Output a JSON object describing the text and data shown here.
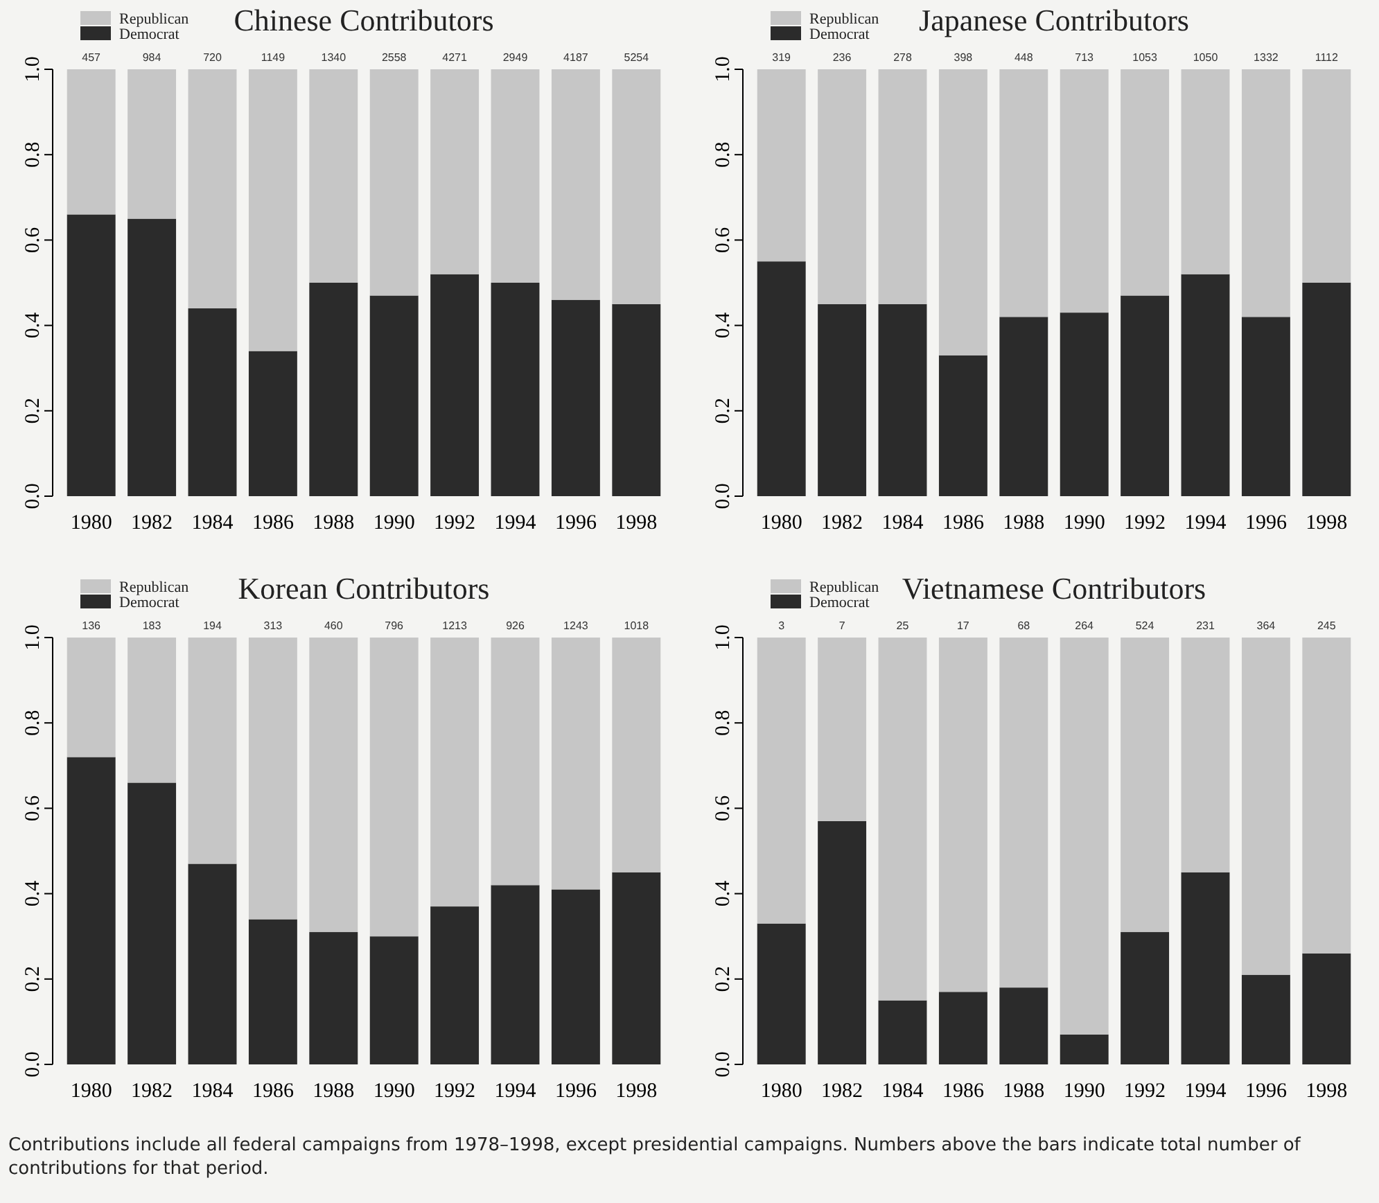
{
  "chart_data": [
    {
      "type": "bar",
      "title": "Chinese Contributors",
      "stacked": true,
      "legend": "top left",
      "ylim": [
        0,
        1.0
      ],
      "yticks": [
        {
          "value": 0,
          "label": "0.0"
        },
        {
          "value": 0.2,
          "label": "0.2"
        },
        {
          "value": 0.4,
          "label": "0.4"
        },
        {
          "value": 0.6,
          "label": "0.6"
        },
        {
          "value": 0.8,
          "label": "0.8"
        },
        {
          "value": 1,
          "label": "1.0"
        }
      ],
      "categories": [
        "1980",
        "1982",
        "1984",
        "1986",
        "1988",
        "1990",
        "1992",
        "1994",
        "1996",
        "1998"
      ],
      "series": [
        {
          "name": "Democrat",
          "color": "#2b2b2b",
          "values": [
            0.66,
            0.65,
            0.44,
            0.34,
            0.5,
            0.47,
            0.52,
            0.5,
            0.46,
            0.45
          ]
        },
        {
          "name": "Republican",
          "color": "#c6c6c6",
          "values": [
            0.34,
            0.35,
            0.56,
            0.66,
            0.5,
            0.53,
            0.48,
            0.5,
            0.54,
            0.55
          ]
        }
      ],
      "annotations": [
        {
          "text": "457",
          "x": "1980",
          "y": 1
        },
        {
          "text": "984",
          "x": "1982",
          "y": 1
        },
        {
          "text": "720",
          "x": "1984",
          "y": 1
        },
        {
          "text": "1149",
          "x": "1986",
          "y": 1
        },
        {
          "text": "1340",
          "x": "1988",
          "y": 1
        },
        {
          "text": "2558",
          "x": "1990",
          "y": 1
        },
        {
          "text": "4271",
          "x": "1992",
          "y": 1
        },
        {
          "text": "2949",
          "x": "1994",
          "y": 1
        },
        {
          "text": "4187",
          "x": "1996",
          "y": 1
        },
        {
          "text": "5254",
          "x": "1998",
          "y": 1
        }
      ]
    },
    {
      "type": "bar",
      "title": "Japanese Contributors",
      "stacked": true,
      "legend": "top left",
      "ylim": [
        0,
        1.0
      ],
      "yticks": [
        {
          "value": 0,
          "label": "0.0"
        },
        {
          "value": 0.2,
          "label": "0.2"
        },
        {
          "value": 0.4,
          "label": "0.4"
        },
        {
          "value": 0.6,
          "label": "0.6"
        },
        {
          "value": 0.8,
          "label": "0.8"
        },
        {
          "value": 1,
          "label": "1.0"
        }
      ],
      "categories": [
        "1980",
        "1982",
        "1984",
        "1986",
        "1988",
        "1990",
        "1992",
        "1994",
        "1996",
        "1998"
      ],
      "series": [
        {
          "name": "Democrat",
          "color": "#2b2b2b",
          "values": [
            0.55,
            0.45,
            0.45,
            0.33,
            0.42,
            0.43,
            0.47,
            0.52,
            0.42,
            0.5
          ]
        },
        {
          "name": "Republican",
          "color": "#c6c6c6",
          "values": [
            0.45,
            0.55,
            0.55,
            0.67,
            0.58,
            0.57,
            0.53,
            0.48,
            0.58,
            0.5
          ]
        }
      ],
      "annotations": [
        {
          "text": "319",
          "x": "1980",
          "y": 1
        },
        {
          "text": "236",
          "x": "1982",
          "y": 1
        },
        {
          "text": "278",
          "x": "1984",
          "y": 1
        },
        {
          "text": "398",
          "x": "1986",
          "y": 1
        },
        {
          "text": "448",
          "x": "1988",
          "y": 1
        },
        {
          "text": "713",
          "x": "1990",
          "y": 1
        },
        {
          "text": "1053",
          "x": "1992",
          "y": 1
        },
        {
          "text": "1050",
          "x": "1994",
          "y": 1
        },
        {
          "text": "1332",
          "x": "1996",
          "y": 1
        },
        {
          "text": "1112",
          "x": "1998",
          "y": 1
        }
      ]
    },
    {
      "type": "bar",
      "title": "Korean Contributors",
      "stacked": true,
      "legend": "top left",
      "ylim": [
        0,
        1.0
      ],
      "yticks": [
        {
          "value": 0,
          "label": "0.0"
        },
        {
          "value": 0.2,
          "label": "0.2"
        },
        {
          "value": 0.4,
          "label": "0.4"
        },
        {
          "value": 0.6,
          "label": "0.6"
        },
        {
          "value": 0.8,
          "label": "0.8"
        },
        {
          "value": 1,
          "label": "1.0"
        }
      ],
      "categories": [
        "1980",
        "1982",
        "1984",
        "1986",
        "1988",
        "1990",
        "1992",
        "1994",
        "1996",
        "1998"
      ],
      "series": [
        {
          "name": "Democrat",
          "color": "#2b2b2b",
          "values": [
            0.72,
            0.66,
            0.47,
            0.34,
            0.31,
            0.3,
            0.37,
            0.42,
            0.41,
            0.45
          ]
        },
        {
          "name": "Republican",
          "color": "#c6c6c6",
          "values": [
            0.28,
            0.34,
            0.53,
            0.66,
            0.69,
            0.7,
            0.63,
            0.58,
            0.59,
            0.55
          ]
        }
      ],
      "annotations": [
        {
          "text": "136",
          "x": "1980",
          "y": 1
        },
        {
          "text": "183",
          "x": "1982",
          "y": 1
        },
        {
          "text": "194",
          "x": "1984",
          "y": 1
        },
        {
          "text": "313",
          "x": "1986",
          "y": 1
        },
        {
          "text": "460",
          "x": "1988",
          "y": 1
        },
        {
          "text": "796",
          "x": "1990",
          "y": 1
        },
        {
          "text": "1213",
          "x": "1992",
          "y": 1
        },
        {
          "text": "926",
          "x": "1994",
          "y": 1
        },
        {
          "text": "1243",
          "x": "1996",
          "y": 1
        },
        {
          "text": "1018",
          "x": "1998",
          "y": 1
        }
      ]
    },
    {
      "type": "bar",
      "title": "Vietnamese Contributors",
      "stacked": true,
      "legend": "top left",
      "ylim": [
        0,
        1.0
      ],
      "yticks": [
        {
          "value": 0,
          "label": "0.0"
        },
        {
          "value": 0.2,
          "label": "0.2"
        },
        {
          "value": 0.4,
          "label": "0.4"
        },
        {
          "value": 0.6,
          "label": "0.6"
        },
        {
          "value": 0.8,
          "label": "0.8"
        },
        {
          "value": 1,
          "label": "1.0"
        }
      ],
      "categories": [
        "1980",
        "1982",
        "1984",
        "1986",
        "1988",
        "1990",
        "1992",
        "1994",
        "1996",
        "1998"
      ],
      "series": [
        {
          "name": "Democrat",
          "color": "#2b2b2b",
          "values": [
            0.33,
            0.57,
            0.15,
            0.17,
            0.18,
            0.07,
            0.31,
            0.45,
            0.21,
            0.26
          ]
        },
        {
          "name": "Republican",
          "color": "#c6c6c6",
          "values": [
            0.67,
            0.43,
            0.85,
            0.83,
            0.82,
            0.93,
            0.69,
            0.55,
            0.79,
            0.74
          ]
        }
      ],
      "annotations": [
        {
          "text": "3",
          "x": "1980",
          "y": 1
        },
        {
          "text": "7",
          "x": "1982",
          "y": 1
        },
        {
          "text": "25",
          "x": "1984",
          "y": 1
        },
        {
          "text": "17",
          "x": "1986",
          "y": 1
        },
        {
          "text": "68",
          "x": "1988",
          "y": 1
        },
        {
          "text": "264",
          "x": "1990",
          "y": 1
        },
        {
          "text": "524",
          "x": "1992",
          "y": 1
        },
        {
          "text": "231",
          "x": "1994",
          "y": 1
        },
        {
          "text": "364",
          "x": "1996",
          "y": 1
        },
        {
          "text": "245",
          "x": "1998",
          "y": 1
        },
        "Contributions include all federal campaigns from 1978–1998, except presidential campaigns. Numbers above the bars indicate total number of contributions for that period."
      ]
    }
  ]
}
